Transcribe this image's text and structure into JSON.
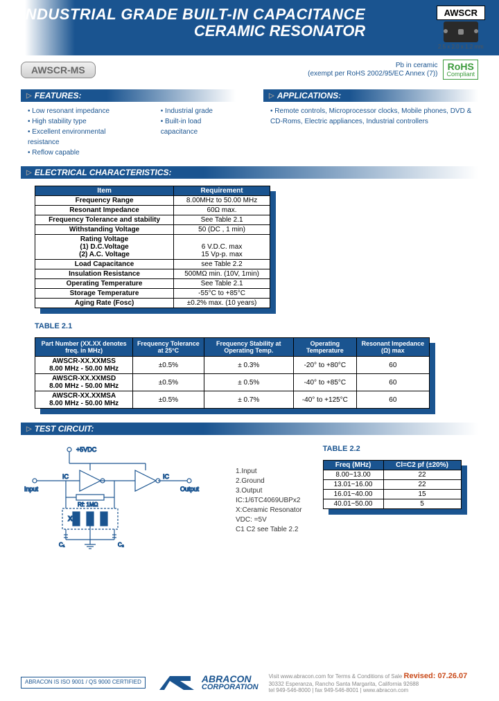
{
  "header": {
    "title_line1": "INDUSTRIAL GRADE BUILT-IN CAPACITANCE",
    "title_line2": "CERAMIC RESONATOR",
    "chip_label": "AWSCR",
    "chip_dimensions": "2.5 x 2.0 x 1.2 mm"
  },
  "subheader": {
    "part_number": "AWSCR-MS",
    "pb_text_line1": "Pb in ceramic",
    "pb_text_line2": "(exempt per RoHS 2002/95/EC Annex (7))",
    "rohs_top": "RoHS",
    "rohs_bottom": "Compliant"
  },
  "features": {
    "heading": "FEATURES:",
    "col1": [
      "Low resonant impedance",
      "High stability type",
      "Excellent environmental resistance",
      "Reflow capable"
    ],
    "col2": [
      "Industrial grade",
      "Built-in load capacitance"
    ]
  },
  "applications": {
    "heading": "APPLICATIONS:",
    "items": [
      "Remote controls, Microprocessor clocks, Mobile phones, DVD & CD-Roms, Electric appliances, Industrial controllers"
    ]
  },
  "elec_char": {
    "heading": "ELECTRICAL  CHARACTERISTICS:",
    "columns": [
      "Item",
      "Requirement"
    ],
    "rows": [
      [
        "Frequency Range",
        "8.00MHz to 50.00 MHz"
      ],
      [
        "Resonant Impedance",
        "60Ω max."
      ],
      [
        "Frequency Tolerance and stability",
        "See Table 2.1"
      ],
      [
        "Withstanding Voltage",
        "50 (DC , 1 min)"
      ],
      [
        "Rating Voltage\n(1) D.C.Voltage\n(2) A.C. Voltage",
        "\n6 V.D.C. max\n15 Vp-p. max"
      ],
      [
        "Load Capacitance",
        "see Table 2.2"
      ],
      [
        "Insulation Resistance",
        "500MΩ min. (10V, 1min)"
      ],
      [
        "Operating Temperature",
        "See Table 2.1"
      ],
      [
        "Storage Temperature",
        "-55°C to +85°C"
      ],
      [
        "Aging Rate  (Fosc)",
        "±0.2% max. (10 years)"
      ]
    ]
  },
  "table21": {
    "label": "TABLE 2.1",
    "columns": [
      "Part Number (XX.XX denotes freq. in MHz)",
      "Frequency Tolerance at 25°C",
      "Frequency Stability at Operating Temp.",
      "Operating Temperature",
      "Resonant Impedance (Ω) max"
    ],
    "rows": [
      {
        "pn": "AWSCR-XX.XXMSS",
        "range": "8.00 MHz - 50.00 MHz",
        "tol": "±0.5%",
        "stab": "± 0.3%",
        "temp": "-20° to +80°C",
        "imp": "60"
      },
      {
        "pn": "AWSCR-XX.XXMSD",
        "range": "8.00 MHz - 50.00 MHz",
        "tol": "±0.5%",
        "stab": "± 0.5%",
        "temp": "-40° to +85°C",
        "imp": "60"
      },
      {
        "pn": "AWSCR-XX.XXMSA",
        "range": "8.00 MHz - 50.00 MHz",
        "tol": "±0.5%",
        "stab": "± 0.7%",
        "temp": "-40° to +125°C",
        "imp": "60"
      }
    ]
  },
  "test_circuit": {
    "heading": "TEST CIRCUIT:",
    "notes": [
      "1.Input",
      "2.Ground",
      "3.Output",
      "IC:1/6TC4069UBPx2",
      "X:Ceramic  Resonator",
      "VDC: =5V",
      "C1 C2 see Table 2.2"
    ],
    "labels": {
      "vcc": "+5VDC",
      "input": "Input",
      "output": "Output",
      "ic": "IC",
      "x": "X",
      "rf": "Rf: 1MΩ",
      "c1": "C₁",
      "c2": "C₂"
    }
  },
  "table22": {
    "label": "TABLE 2.2",
    "columns": [
      "Freq (MHz)",
      "Cl=C2 pf (±20%)"
    ],
    "rows": [
      [
        "8.00~13.00",
        "22"
      ],
      [
        "13.01~16.00",
        "22"
      ],
      [
        "16.01~40.00",
        "15"
      ],
      [
        "40.01~50.00",
        "5"
      ]
    ]
  },
  "footer": {
    "cert": "ABRACON IS ISO 9001 / QS 9000 CERTIFIED",
    "company_line1": "ABRACON",
    "company_line2": "CORPORATION",
    "info_line1": "Visit www.abracon.com for Terms & Conditions of Sale",
    "info_line2": "30332 Esperanza, Rancho Santa Margarita, California 92688",
    "info_line3": "tel 949-546-8000 | fax 949-546-8001 | www.abracon.com",
    "revised": "Revised: 07.26.07"
  },
  "colors": {
    "primary": "#1a5490",
    "accent": "#c94a1a",
    "green": "#3a9a3a"
  }
}
